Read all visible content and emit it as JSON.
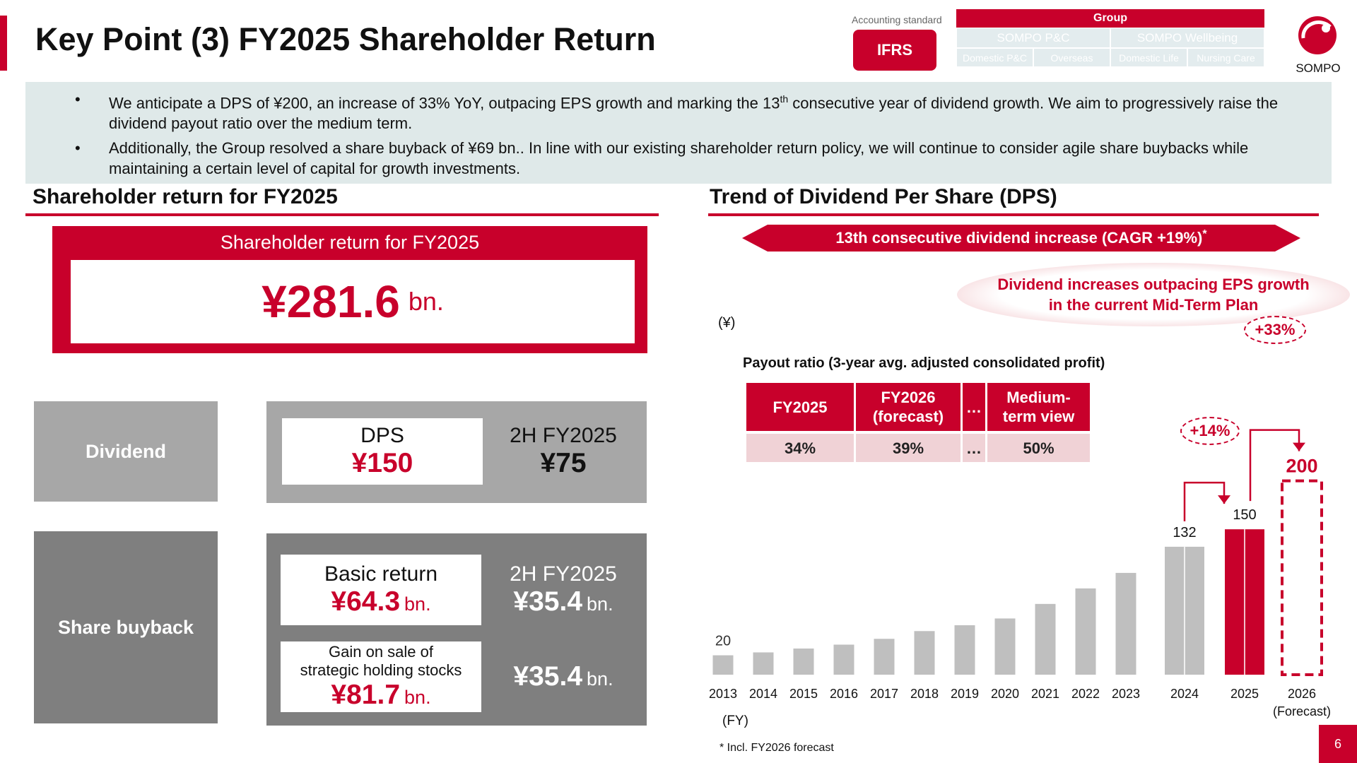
{
  "header": {
    "title": "Key Point (3) FY2025 Shareholder Return",
    "accounting_label": "Accounting standard",
    "accounting_value": "IFRS",
    "group_table": {
      "head": "Group",
      "row2": [
        "SOMPO P&C",
        "SOMPO Wellbeing"
      ],
      "row3": [
        "Domestic P&C",
        "Overseas",
        "Domestic Life",
        "Nursing Care"
      ]
    },
    "logo_text": "SOMPO"
  },
  "summary": {
    "bullet_symbol": "•",
    "bullet1_a": "We anticipate a DPS of ¥200, an increase of 33% YoY, outpacing EPS growth and marking the 13",
    "bullet1_sup": "th",
    "bullet1_b": " consecutive year of dividend growth. We aim to progressively raise the dividend payout ratio over the medium term.",
    "bullet2": "Additionally, the Group resolved a share buyback of ¥69 bn.. In line with our existing shareholder return policy, we will continue to consider agile share buybacks while maintaining a certain level of capital for growth investments."
  },
  "left": {
    "heading": "Shareholder return for FY2025",
    "box_title": "Shareholder return for FY2025",
    "total_value": "¥281.6",
    "total_unit": "bn.",
    "dividend_label": "Dividend",
    "dps_label": "DPS",
    "dps_value": "¥150",
    "dividend_side_label": "2H FY2025",
    "dividend_side_value": "¥75",
    "buyback_label": "Share buyback",
    "basic_label": "Basic return",
    "basic_value": "¥64.3",
    "basic_unit": "bn.",
    "basic_side_label": "2H FY2025",
    "basic_side_value": "¥35.4",
    "basic_side_unit": "bn.",
    "gain_label_1": "Gain on sale of",
    "gain_label_2": "strategic holding stocks",
    "gain_value": "¥81.7",
    "gain_unit": "bn.",
    "gain_side_value": "¥35.4",
    "gain_side_unit": "bn."
  },
  "right": {
    "heading": "Trend of Dividend Per Share (DPS)",
    "banner": "13th consecutive dividend increase (CAGR +19%)",
    "banner_star": "*",
    "ellipse_1": "Dividend increases outpacing EPS growth",
    "ellipse_2": "in the current Mid-Term Plan",
    "payout_title": "Payout ratio (3-year avg. adjusted consolidated profit)",
    "payout_table": {
      "headers": [
        "FY2025",
        "FY2026\n(forecast)",
        "…",
        "Medium-\nterm view"
      ],
      "values": [
        "34%",
        "39%",
        "…",
        "50%"
      ]
    },
    "bubble_14": "+14%",
    "bubble_33": "+33%",
    "footnote": "* Incl. FY2026 forecast",
    "page_number": "6"
  },
  "chart_data": {
    "type": "bar",
    "title": "Trend of Dividend Per Share (DPS)",
    "ylabel": "(¥)",
    "xlabel": "(FY)",
    "categories": [
      "2013",
      "2014",
      "2015",
      "2016",
      "2017",
      "2018",
      "2019",
      "2020",
      "2021",
      "2022",
      "2023",
      "2024",
      "2025",
      "2026"
    ],
    "category_sublabels": {
      "2026": "(Forecast)"
    },
    "values": [
      20,
      23,
      27,
      31,
      37,
      45,
      51,
      58,
      73,
      89,
      105,
      132,
      150,
      200
    ],
    "data_labels": {
      "2013": "20",
      "2024": "132",
      "2025": "150",
      "2026": "200"
    },
    "highlight": {
      "2025": "#c8002b",
      "2026": "forecast-dashed"
    },
    "bar_color": "#bfbfbf",
    "ylim": [
      0,
      215
    ],
    "grid": false
  }
}
